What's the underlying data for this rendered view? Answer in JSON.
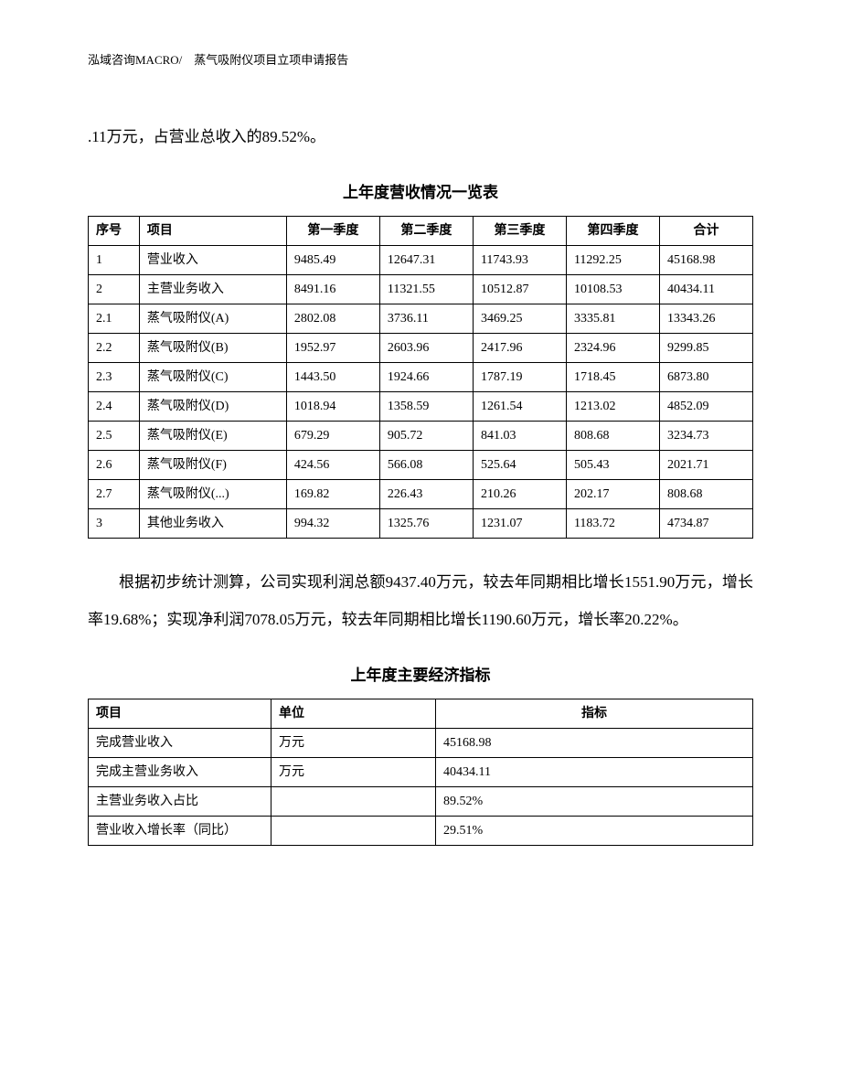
{
  "header": "泓域咨询MACRO/　蒸气吸附仪项目立项申请报告",
  "para1": ".11万元，占营业总收入的89.52%。",
  "table1": {
    "title": "上年度营收情况一览表",
    "headers": [
      "序号",
      "项目",
      "第一季度",
      "第二季度",
      "第三季度",
      "第四季度",
      "合计"
    ],
    "rows": [
      [
        "1",
        "营业收入",
        "9485.49",
        "12647.31",
        "11743.93",
        "11292.25",
        "45168.98"
      ],
      [
        "2",
        "主营业务收入",
        "8491.16",
        "11321.55",
        "10512.87",
        "10108.53",
        "40434.11"
      ],
      [
        "2.1",
        "蒸气吸附仪(A)",
        "2802.08",
        "3736.11",
        "3469.25",
        "3335.81",
        "13343.26"
      ],
      [
        "2.2",
        "蒸气吸附仪(B)",
        "1952.97",
        "2603.96",
        "2417.96",
        "2324.96",
        "9299.85"
      ],
      [
        "2.3",
        "蒸气吸附仪(C)",
        "1443.50",
        "1924.66",
        "1787.19",
        "1718.45",
        "6873.80"
      ],
      [
        "2.4",
        "蒸气吸附仪(D)",
        "1018.94",
        "1358.59",
        "1261.54",
        "1213.02",
        "4852.09"
      ],
      [
        "2.5",
        "蒸气吸附仪(E)",
        "679.29",
        "905.72",
        "841.03",
        "808.68",
        "3234.73"
      ],
      [
        "2.6",
        "蒸气吸附仪(F)",
        "424.56",
        "566.08",
        "525.64",
        "505.43",
        "2021.71"
      ],
      [
        "2.7",
        "蒸气吸附仪(...)",
        "169.82",
        "226.43",
        "210.26",
        "202.17",
        "808.68"
      ],
      [
        "3",
        "其他业务收入",
        "994.32",
        "1325.76",
        "1231.07",
        "1183.72",
        "4734.87"
      ]
    ]
  },
  "para2": "根据初步统计测算，公司实现利润总额9437.40万元，较去年同期相比增长1551.90万元，增长率19.68%；实现净利润7078.05万元，较去年同期相比增长1190.60万元，增长率20.22%。",
  "table2": {
    "title": "上年度主要经济指标",
    "headers": [
      "项目",
      "单位",
      "指标"
    ],
    "rows": [
      [
        "完成营业收入",
        "万元",
        "45168.98"
      ],
      [
        "完成主营业务收入",
        "万元",
        "40434.11"
      ],
      [
        "主营业务收入占比",
        "",
        "89.52%"
      ],
      [
        "营业收入增长率（同比）",
        "",
        "29.51%"
      ]
    ]
  }
}
